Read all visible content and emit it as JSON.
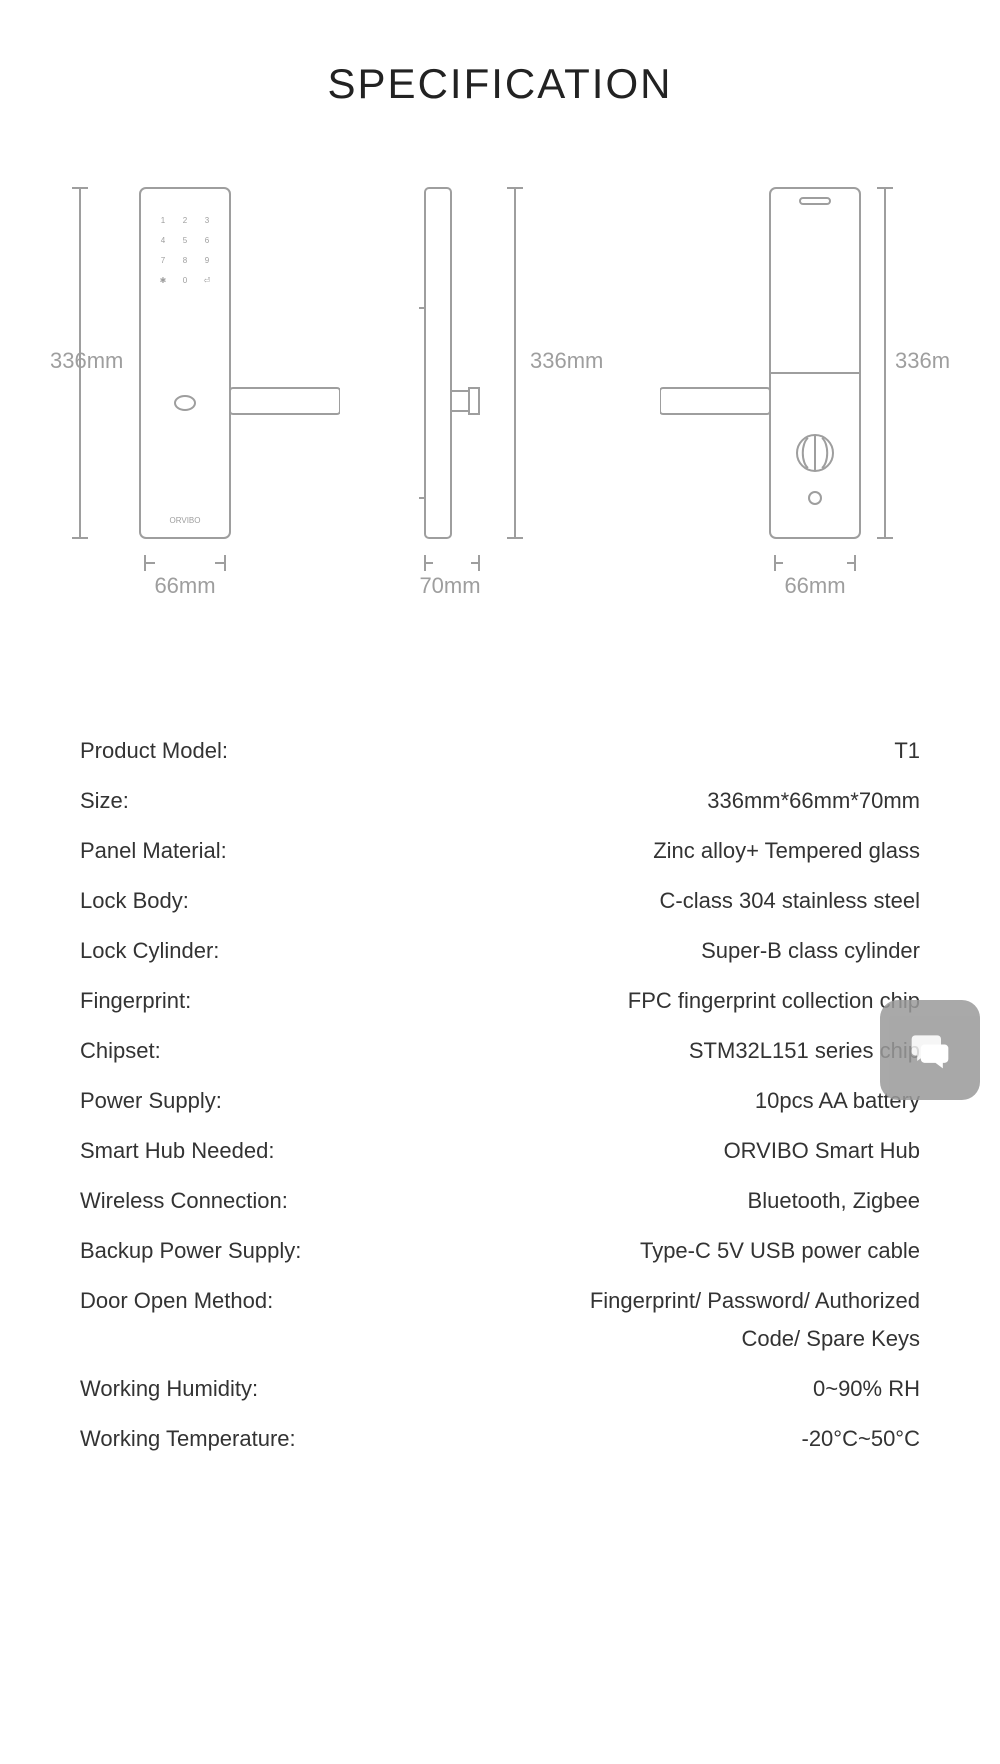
{
  "title": "SPECIFICATION",
  "diagrams": {
    "stroke_color": "#9e9e9e",
    "text_color": "#9e9e9e",
    "stroke_width": 2,
    "label_fontsize": 22,
    "keypad_fontsize": 8,
    "brand_fontsize": 8,
    "height_label": "336mm",
    "front": {
      "width_label": "66mm",
      "keypad": [
        [
          "1",
          "2",
          "3"
        ],
        [
          "4",
          "5",
          "6"
        ],
        [
          "7",
          "8",
          "9"
        ],
        [
          "✱",
          "0",
          "⏎"
        ]
      ],
      "brand": "ORVIBO"
    },
    "side": {
      "width_label": "70mm"
    },
    "back": {
      "width_label": "66mm"
    }
  },
  "specs": [
    {
      "label": "Product Model:",
      "value": "T1"
    },
    {
      "label": "Size:",
      "value": "336mm*66mm*70mm"
    },
    {
      "label": "Panel Material:",
      "value": "Zinc alloy+ Tempered glass"
    },
    {
      "label": "Lock Body:",
      "value": "C-class 304 stainless steel"
    },
    {
      "label": "Lock Cylinder:",
      "value": "Super-B class cylinder"
    },
    {
      "label": "Fingerprint:",
      "value": "FPC fingerprint collection chip"
    },
    {
      "label": "Chipset:",
      "value": "STM32L151 series chip"
    },
    {
      "label": "Power Supply:",
      "value": "10pcs AA battery"
    },
    {
      "label": "Smart Hub Needed:",
      "value": "ORVIBO Smart Hub"
    },
    {
      "label": "Wireless Connection:",
      "value": "Bluetooth, Zigbee"
    },
    {
      "label": "Backup Power Supply:",
      "value": "Type-C 5V USB power cable"
    },
    {
      "label": "Door Open Method:",
      "value": "Fingerprint/ Password/ Authorized",
      "cont": "Code/ Spare Keys"
    },
    {
      "label": "Working Humidity:",
      "value": "0~90% RH"
    },
    {
      "label": "Working Temperature:",
      "value": "-20°C~50°C"
    }
  ],
  "chat_icon_color": "#ffffff"
}
